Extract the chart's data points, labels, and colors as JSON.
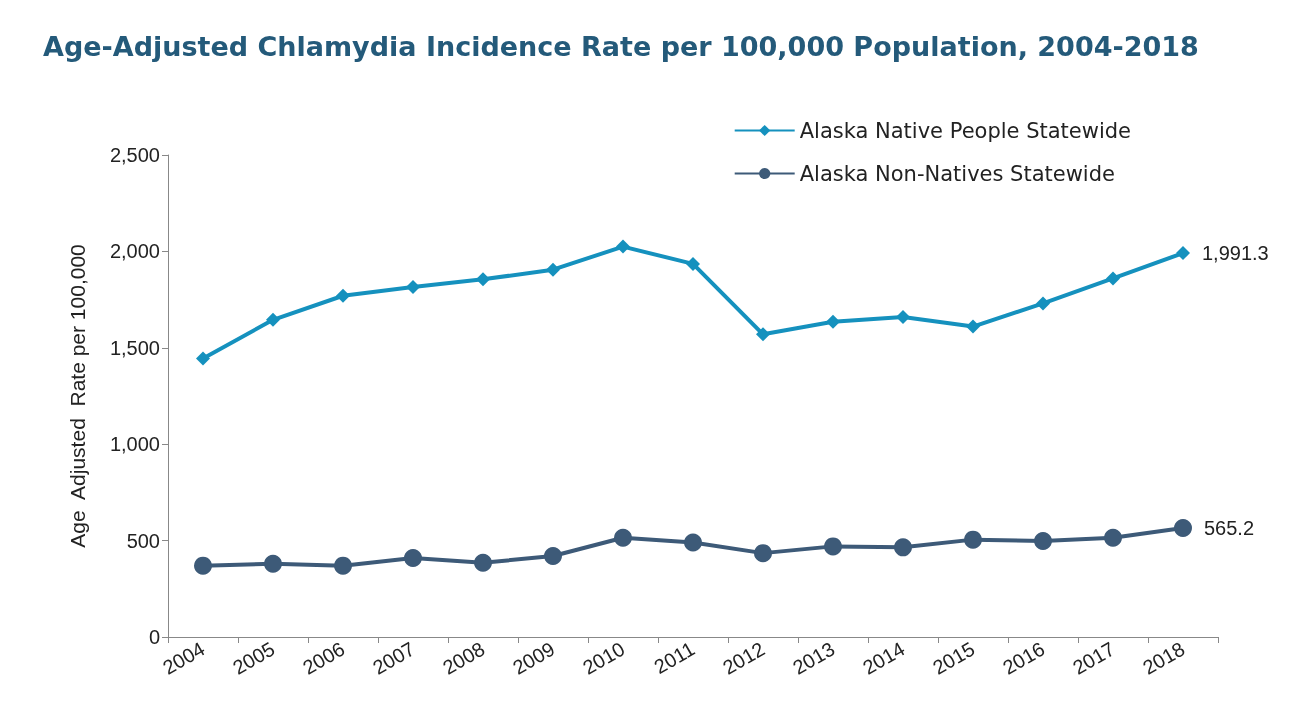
{
  "chart_data": {
    "type": "line",
    "title": "Age-Adjusted Chlamydia Incidence Rate per 100,000 Population, 2004-2018",
    "ylabel": "Age  Adjusted  Rate per 100,000",
    "categories": [
      "2004",
      "2005",
      "2006",
      "2007",
      "2008",
      "2009",
      "2010",
      "2011",
      "2012",
      "2013",
      "2014",
      "2015",
      "2016",
      "2017",
      "2018"
    ],
    "series": [
      {
        "name": "Alaska Native People Statewide",
        "color": "#1591be",
        "marker": "diamond",
        "values": [
          1445,
          1645,
          1770,
          1815,
          1855,
          1905,
          2025,
          1935,
          1570,
          1635,
          1660,
          1610,
          1730,
          1860,
          1991.3
        ],
        "value_labels": [
          null,
          null,
          null,
          null,
          null,
          null,
          null,
          null,
          null,
          null,
          null,
          null,
          null,
          null,
          "1,991.3"
        ]
      },
      {
        "name": "Alaska Non-Natives Statewide",
        "color": "#3d5a78",
        "marker": "circle",
        "values": [
          370,
          380,
          370,
          410,
          385,
          420,
          515,
          490,
          435,
          470,
          465,
          505,
          498,
          515,
          565.2
        ],
        "value_labels": [
          null,
          null,
          null,
          null,
          null,
          null,
          null,
          null,
          null,
          null,
          null,
          null,
          null,
          null,
          "565.2"
        ]
      }
    ],
    "ylim": [
      0,
      2500
    ],
    "yticks": [
      0,
      500,
      {
        "value": 1000,
        "label": "1,000"
      },
      {
        "value": 1500,
        "label": "1,500"
      },
      {
        "value": 2000,
        "label": "2,000"
      },
      {
        "value": 2500,
        "label": "2,500"
      }
    ],
    "grid": false,
    "legend": "top right",
    "line_style": "solid"
  }
}
